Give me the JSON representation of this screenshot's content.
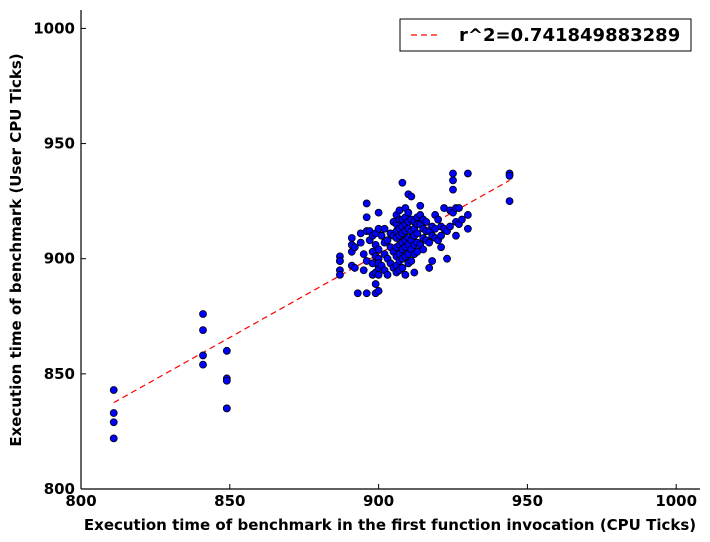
{
  "chart_data": {
    "type": "scatter",
    "xlabel": "Execution time of benchmark in the first function invocation (CPU Ticks)",
    "ylabel": "Execution time of benchmark (User CPU Ticks)",
    "xlim": [
      800,
      1008
    ],
    "ylim": [
      800,
      1008
    ],
    "xticks": [
      800,
      850,
      900,
      950,
      1000
    ],
    "yticks": [
      800,
      850,
      900,
      950,
      1000
    ],
    "xtick_labels": [
      "800",
      "850",
      "900",
      "950",
      "1000"
    ],
    "ytick_labels": [
      "800",
      "850",
      "900",
      "950",
      "1000"
    ],
    "grid": false,
    "legend_position": "top-right",
    "legend_label": "r^2=0.741849883289",
    "colors": {
      "points": "#0000ff",
      "fit": "#ff0000"
    },
    "fit_line": {
      "x": [
        811,
        944
      ],
      "y": [
        837.5,
        934
      ]
    },
    "points": {
      "x": [
        811,
        811,
        811,
        811,
        841,
        841,
        841,
        841,
        849,
        849,
        849,
        849,
        849,
        887,
        887,
        887,
        887,
        887,
        891,
        891,
        891,
        891,
        892,
        892,
        893,
        894,
        894,
        895,
        895,
        896,
        896,
        896,
        896,
        896,
        897,
        897,
        898,
        898,
        898,
        898,
        899,
        899,
        899,
        899,
        899,
        899,
        900,
        900,
        900,
        900,
        900,
        900,
        900,
        900,
        901,
        901,
        902,
        902,
        902,
        902,
        903,
        903,
        903,
        904,
        904,
        904,
        905,
        905,
        905,
        905,
        906,
        906,
        906,
        906,
        906,
        906,
        906,
        906,
        907,
        907,
        907,
        907,
        907,
        907,
        907,
        907,
        908,
        908,
        908,
        908,
        908,
        908,
        908,
        908,
        909,
        909,
        909,
        909,
        909,
        909,
        909,
        909,
        910,
        910,
        910,
        910,
        910,
        910,
        910,
        910,
        911,
        911,
        911,
        911,
        911,
        911,
        912,
        912,
        912,
        912,
        912,
        912,
        913,
        913,
        913,
        913,
        913,
        914,
        914,
        914,
        914,
        915,
        915,
        915,
        915,
        916,
        916,
        916,
        917,
        917,
        917,
        918,
        918,
        918,
        919,
        919,
        919,
        920,
        920,
        921,
        921,
        921,
        922,
        922,
        923,
        923,
        924,
        924,
        925,
        925,
        925,
        925,
        926,
        926,
        926,
        927,
        927,
        928,
        930,
        930,
        930,
        944,
        944,
        944
      ],
      "y": [
        843,
        833,
        829,
        822,
        876,
        869,
        858,
        854,
        860,
        848,
        847,
        835,
        835,
        901,
        899,
        895,
        893,
        899,
        909,
        906,
        903,
        897,
        896,
        905,
        885,
        911,
        907,
        902,
        895,
        924,
        918,
        912,
        899,
        885,
        912,
        908,
        910,
        903,
        898,
        893,
        911,
        906,
        901,
        894,
        889,
        885,
        920,
        913,
        904,
        900,
        896,
        893,
        886,
        898,
        910,
        897,
        913,
        907,
        902,
        895,
        908,
        900,
        893,
        911,
        905,
        898,
        916,
        910,
        903,
        896,
        919,
        915,
        912,
        909,
        905,
        901,
        897,
        894,
        921,
        917,
        913,
        910,
        906,
        902,
        899,
        895,
        933,
        917,
        914,
        911,
        907,
        904,
        900,
        896,
        922,
        918,
        915,
        912,
        908,
        905,
        901,
        893,
        928,
        920,
        916,
        913,
        909,
        906,
        902,
        898,
        927,
        917,
        912,
        908,
        904,
        899,
        916,
        913,
        910,
        906,
        902,
        894,
        918,
        915,
        911,
        907,
        903,
        923,
        919,
        915,
        906,
        917,
        913,
        909,
        904,
        916,
        912,
        908,
        912,
        907,
        896,
        914,
        910,
        899,
        919,
        913,
        909,
        917,
        908,
        914,
        910,
        905,
        922,
        913,
        912,
        900,
        921,
        914,
        937,
        934,
        930,
        920,
        922,
        916,
        910,
        922,
        915,
        917,
        937,
        919,
        913,
        937,
        936,
        925
      ]
    }
  }
}
